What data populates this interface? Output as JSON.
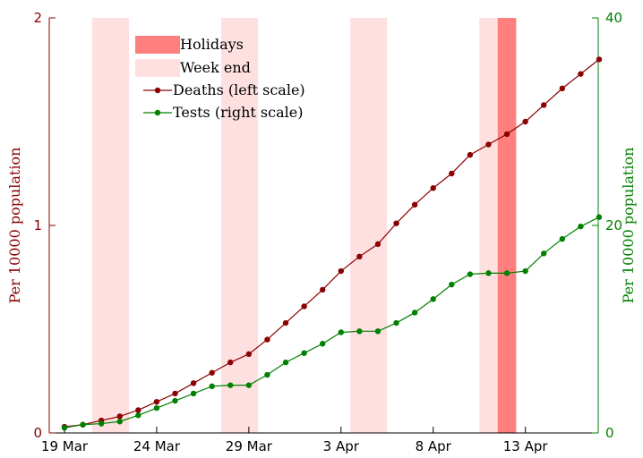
{
  "chart_data": {
    "type": "line",
    "x": [
      "19 Mar",
      "20 Mar",
      "21 Mar",
      "22 Mar",
      "23 Mar",
      "24 Mar",
      "25 Mar",
      "26 Mar",
      "27 Mar",
      "28 Mar",
      "29 Mar",
      "30 Mar",
      "31 Mar",
      "1 Apr",
      "2 Apr",
      "3 Apr",
      "4 Apr",
      "5 Apr",
      "6 Apr",
      "7 Apr",
      "8 Apr",
      "9 Apr",
      "10 Apr",
      "11 Apr",
      "12 Apr",
      "13 Apr",
      "14 Apr",
      "15 Apr",
      "16 Apr",
      "17 Apr"
    ],
    "x_tick_labels": [
      "19 Mar",
      "24 Mar",
      "29 Mar",
      "3 Apr",
      "8 Apr",
      "13 Apr"
    ],
    "x_tick_indices": [
      0,
      5,
      10,
      15,
      20,
      25
    ],
    "series": [
      {
        "name": "Deaths (left scale)",
        "axis": "left",
        "color": "#8B0000",
        "values": [
          0.03,
          0.04,
          0.06,
          0.08,
          0.11,
          0.15,
          0.19,
          0.24,
          0.29,
          0.34,
          0.38,
          0.45,
          0.53,
          0.61,
          0.69,
          0.78,
          0.85,
          0.91,
          1.01,
          1.1,
          1.18,
          1.25,
          1.34,
          1.39,
          1.44,
          1.5,
          1.58,
          1.66,
          1.73,
          1.8
        ]
      },
      {
        "name": "Tests (right scale)",
        "axis": "right",
        "color": "#008000",
        "values": [
          0.5,
          0.8,
          0.9,
          1.1,
          1.7,
          2.4,
          3.1,
          3.8,
          4.5,
          4.6,
          4.6,
          5.6,
          6.8,
          7.7,
          8.6,
          9.7,
          9.8,
          9.8,
          10.6,
          11.6,
          12.9,
          14.3,
          15.3,
          15.4,
          15.4,
          15.6,
          17.3,
          18.7,
          19.9,
          20.8
        ]
      }
    ],
    "left_axis": {
      "ylabel": "Per 10000 population",
      "ylim": [
        0,
        2
      ],
      "ticks": [
        "0",
        "1",
        "2"
      ],
      "color": "#8B0000"
    },
    "right_axis": {
      "ylabel": "Per 10000 population",
      "ylim": [
        0,
        40
      ],
      "ticks": [
        "0",
        "20",
        "40"
      ],
      "color": "#008000"
    },
    "weekend_bands": [
      [
        2,
        3
      ],
      [
        9,
        10
      ],
      [
        16,
        17
      ],
      [
        23,
        24
      ]
    ],
    "holiday_bands": [
      [
        24,
        25
      ]
    ],
    "legend": {
      "holidays": "Holidays",
      "weekend": "Week end",
      "deaths": "Deaths (left scale)",
      "tests": "Tests (right scale)",
      "position": "top-left"
    },
    "colors": {
      "weekend": "#FFE0E0",
      "holiday": "#FF7F7F"
    },
    "grid": false
  }
}
